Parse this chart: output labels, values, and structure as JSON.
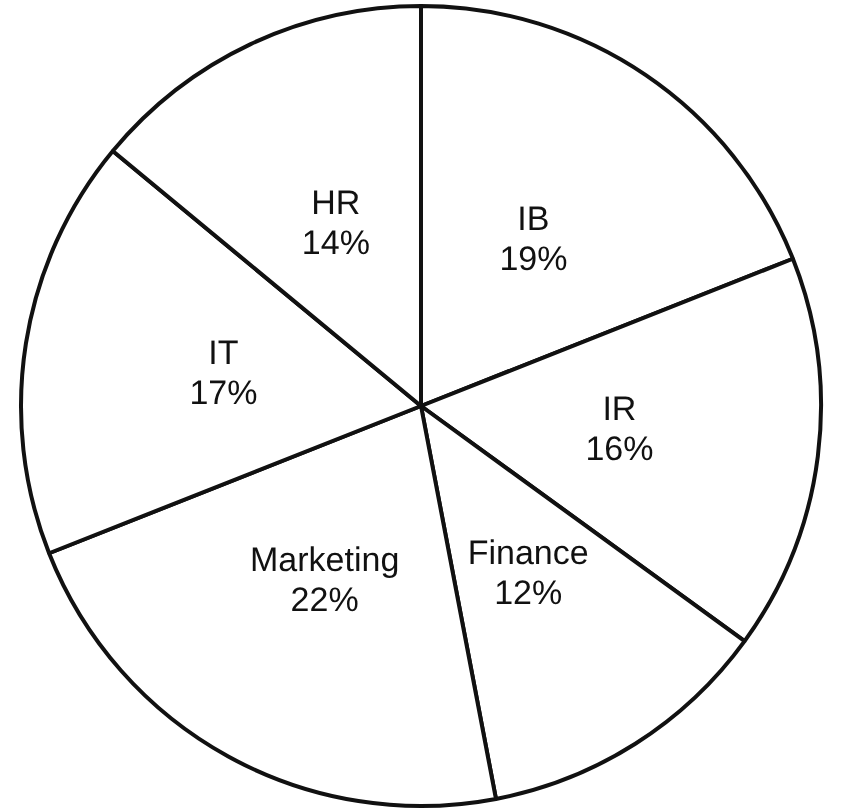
{
  "chart_data": {
    "type": "pie",
    "categories": [
      "IB",
      "IR",
      "Finance",
      "Marketing",
      "IT",
      "HR"
    ],
    "values": [
      19,
      16,
      12,
      22,
      17,
      14
    ],
    "value_labels": [
      "19%",
      "16%",
      "12%",
      "22%",
      "17%",
      "14%"
    ],
    "colors": [
      "#ffffff",
      "#ffffff",
      "#ffffff",
      "#ffffff",
      "#ffffff",
      "#ffffff"
    ],
    "legend": false
  }
}
